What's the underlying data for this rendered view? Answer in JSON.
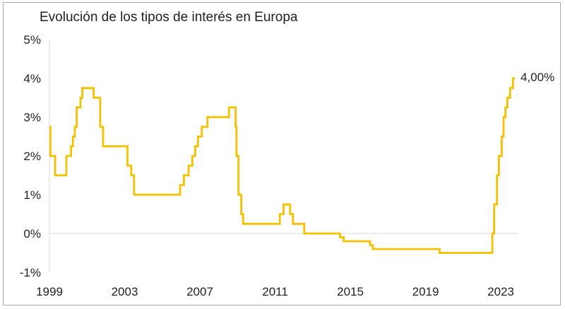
{
  "chart_data": {
    "type": "line",
    "title": "Evolución de los tipos de interés en Europa",
    "xlabel": "",
    "ylabel": "",
    "x_ticks": [
      "1999",
      "2003",
      "2007",
      "2011",
      "2015",
      "2019",
      "2023"
    ],
    "y_ticks": [
      "5%",
      "4%",
      "3%",
      "2%",
      "1%",
      "0%",
      "-1%"
    ],
    "xlim": [
      1999,
      2023.9
    ],
    "ylim": [
      -1,
      5
    ],
    "grid": false,
    "step": true,
    "color": "#F5C000",
    "end_label": "4,00%",
    "series": [
      {
        "points": [
          [
            1999.0,
            2.75
          ],
          [
            1999.05,
            2.0
          ],
          [
            1999.25,
            2.0
          ],
          [
            1999.3,
            1.5
          ],
          [
            1999.85,
            1.5
          ],
          [
            1999.9,
            2.0
          ],
          [
            2000.1,
            2.0
          ],
          [
            2000.15,
            2.25
          ],
          [
            2000.25,
            2.5
          ],
          [
            2000.35,
            2.75
          ],
          [
            2000.45,
            3.25
          ],
          [
            2000.65,
            3.5
          ],
          [
            2000.75,
            3.75
          ],
          [
            2001.3,
            3.75
          ],
          [
            2001.35,
            3.5
          ],
          [
            2001.65,
            3.5
          ],
          [
            2001.7,
            2.75
          ],
          [
            2001.85,
            2.25
          ],
          [
            2003.1,
            2.25
          ],
          [
            2003.15,
            1.75
          ],
          [
            2003.35,
            1.5
          ],
          [
            2003.5,
            1.0
          ],
          [
            2005.9,
            1.0
          ],
          [
            2005.95,
            1.25
          ],
          [
            2006.15,
            1.5
          ],
          [
            2006.4,
            1.75
          ],
          [
            2006.6,
            2.0
          ],
          [
            2006.75,
            2.25
          ],
          [
            2006.9,
            2.5
          ],
          [
            2007.1,
            2.75
          ],
          [
            2007.4,
            3.0
          ],
          [
            2008.5,
            3.0
          ],
          [
            2008.55,
            3.25
          ],
          [
            2008.85,
            3.25
          ],
          [
            2008.9,
            2.75
          ],
          [
            2008.95,
            2.0
          ],
          [
            2009.05,
            1.0
          ],
          [
            2009.2,
            0.5
          ],
          [
            2009.3,
            0.25
          ],
          [
            2011.2,
            0.25
          ],
          [
            2011.25,
            0.5
          ],
          [
            2011.45,
            0.75
          ],
          [
            2011.75,
            0.75
          ],
          [
            2011.8,
            0.5
          ],
          [
            2011.95,
            0.25
          ],
          [
            2012.5,
            0.25
          ],
          [
            2012.55,
            0.0
          ],
          [
            2014.4,
            0.0
          ],
          [
            2014.45,
            -0.1
          ],
          [
            2014.65,
            -0.2
          ],
          [
            2015.95,
            -0.2
          ],
          [
            2016.05,
            -0.3
          ],
          [
            2016.2,
            -0.4
          ],
          [
            2019.7,
            -0.4
          ],
          [
            2019.75,
            -0.5
          ],
          [
            2022.5,
            -0.5
          ],
          [
            2022.55,
            0.0
          ],
          [
            2022.65,
            0.75
          ],
          [
            2022.8,
            1.5
          ],
          [
            2022.9,
            2.0
          ],
          [
            2023.05,
            2.5
          ],
          [
            2023.15,
            3.0
          ],
          [
            2023.25,
            3.25
          ],
          [
            2023.35,
            3.5
          ],
          [
            2023.5,
            3.75
          ],
          [
            2023.65,
            4.0
          ],
          [
            2023.75,
            4.0
          ]
        ]
      }
    ]
  }
}
